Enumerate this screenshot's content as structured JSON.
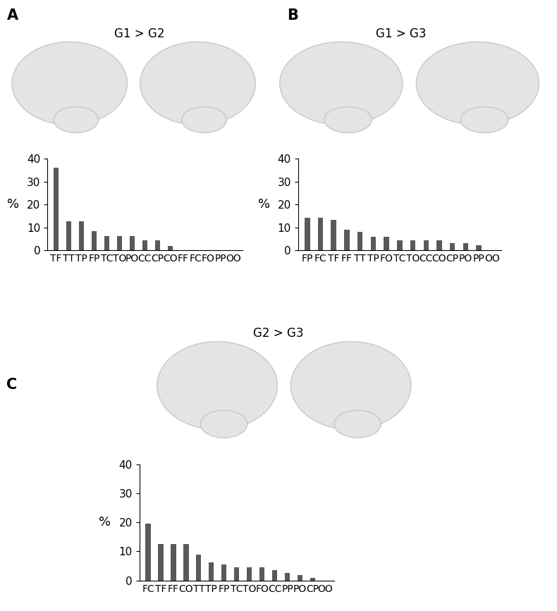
{
  "chart_data": [
    {
      "type": "bar",
      "panel": "A",
      "title": "G1 > G2",
      "y_label": "%",
      "categories": [
        "TF",
        "TT",
        "TP",
        "FP",
        "TC",
        "TO",
        "PO",
        "CC",
        "CP",
        "CO",
        "FF",
        "FC",
        "FO",
        "PP",
        "OO"
      ],
      "values": [
        36.2,
        12.8,
        12.8,
        8.5,
        6.4,
        6.4,
        6.4,
        4.3,
        4.3,
        2.1,
        0,
        0,
        0,
        0,
        0
      ],
      "color": "#595959",
      "ylim": [
        0,
        40
      ],
      "yticks": [
        0,
        10,
        20,
        30,
        40
      ],
      "grid": false
    },
    {
      "type": "bar",
      "panel": "B",
      "title": "G1 > G3",
      "y_label": "%",
      "categories": [
        "FP",
        "FC",
        "TF",
        "FF",
        "TT",
        "TP",
        "FO",
        "TC",
        "TO",
        "CC",
        "CO",
        "CP",
        "PO",
        "PP",
        "OO"
      ],
      "values": [
        14.3,
        14.3,
        13.5,
        9.0,
        8.0,
        6.0,
        6.0,
        4.5,
        4.5,
        4.3,
        4.3,
        3.3,
        3.3,
        2.3,
        0
      ],
      "color": "#595959",
      "ylim": [
        0,
        40
      ],
      "yticks": [
        0,
        10,
        20,
        30,
        40
      ],
      "grid": false
    },
    {
      "type": "bar",
      "panel": "C",
      "title": "G2 > G3",
      "y_label": "%",
      "categories": [
        "FC",
        "TF",
        "FF",
        "CO",
        "TT",
        "TP",
        "FP",
        "TC",
        "TO",
        "FO",
        "CC",
        "PP",
        "PO",
        "CP",
        "OO"
      ],
      "values": [
        19.6,
        12.5,
        12.5,
        12.5,
        8.9,
        6.3,
        5.4,
        4.5,
        4.5,
        4.5,
        3.6,
        2.7,
        1.8,
        0.9,
        0
      ],
      "color": "#595959",
      "ylim": [
        0,
        40
      ],
      "yticks": [
        0,
        10,
        20,
        30,
        40
      ],
      "grid": false
    }
  ]
}
